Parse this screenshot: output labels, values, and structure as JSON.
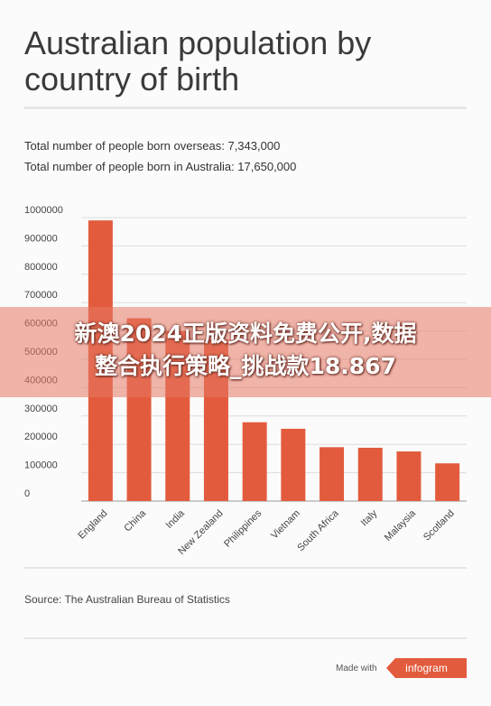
{
  "title": "Australian population by country of birth",
  "stats": {
    "overseas": "Total number of people born overseas: 7,343,000",
    "australia": "Total number of people born in Australia: 17,650,000"
  },
  "chart_data": {
    "type": "bar",
    "title": "Australian population by country of birth",
    "categories": [
      "England",
      "China",
      "India",
      "New Zealand",
      "Philippines",
      "Vietnam",
      "South Africa",
      "Italy",
      "Malaysia",
      "Scotland"
    ],
    "values": [
      990000,
      645000,
      600000,
      570000,
      278000,
      255000,
      190000,
      188000,
      175000,
      133000
    ],
    "yticks": [
      "0",
      "100000",
      "200000",
      "300000",
      "400000",
      "500000",
      "600000",
      "700000",
      "800000",
      "900000",
      "1000000"
    ],
    "ylim": [
      0,
      1000000
    ],
    "xlabel": "",
    "ylabel": "",
    "grid": true,
    "color": "#e35b3d"
  },
  "source": "Source: The Australian Bureau of Statistics",
  "footer": {
    "made_with": "Made with",
    "brand": "infogram"
  },
  "overlay": {
    "line1": "新澳2024正版资料免费公开,数据",
    "line2": "整合执行策略_挑战款18.867"
  }
}
